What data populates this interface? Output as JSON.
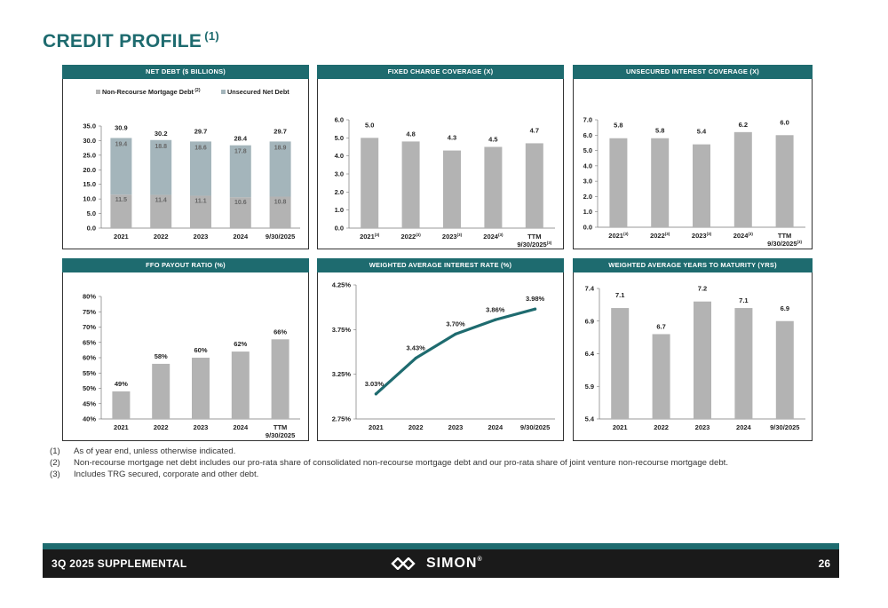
{
  "page": {
    "title": "CREDIT PROFILE",
    "title_footnote": "(1)"
  },
  "colors": {
    "teal": "#1e6b6f",
    "bar_gray": "#b3b3b3",
    "bar_light": "#a4b5bb",
    "dark": "#1a1a1a"
  },
  "chart_data": [
    {
      "id": "net-debt",
      "type": "bar",
      "stacked": true,
      "title": "NET DEBT ($ BILLIONS)",
      "categories": [
        "2021",
        "2022",
        "2023",
        "2024",
        "9/30/2025"
      ],
      "series": [
        {
          "name": "Non-Recourse Mortgage Debt",
          "name_sup": "(2)",
          "values": [
            11.5,
            11.4,
            11.1,
            10.6,
            10.8
          ]
        },
        {
          "name": "Unsecured Net Debt",
          "values": [
            19.4,
            18.8,
            18.6,
            17.8,
            18.9
          ]
        }
      ],
      "totals": [
        30.9,
        30.2,
        29.7,
        28.4,
        29.7
      ],
      "ylim": [
        0,
        35
      ],
      "yticks": [
        "0.0",
        "5.0",
        "10.0",
        "15.0",
        "20.0",
        "25.0",
        "30.0",
        "35.0"
      ],
      "legend": "top"
    },
    {
      "id": "fixed-charge",
      "type": "bar",
      "title": "FIXED CHARGE COVERAGE (X)",
      "categories": [
        "2021",
        "2022",
        "2023",
        "2024",
        "TTM"
      ],
      "category_sub": [
        "",
        "",
        "",
        "",
        "9/30/2025"
      ],
      "category_sup": [
        "(3)",
        "(3)",
        "(3)",
        "(3)",
        "(3)"
      ],
      "values": [
        5.0,
        4.8,
        4.3,
        4.5,
        4.7
      ],
      "value_labels": [
        "5.0",
        "4.8",
        "4.3",
        "4.5",
        "4.7"
      ],
      "ylim": [
        0,
        6
      ],
      "yticks": [
        "0.0",
        "1.0",
        "2.0",
        "3.0",
        "4.0",
        "5.0",
        "6.0"
      ]
    },
    {
      "id": "unsecured-interest",
      "type": "bar",
      "title": "UNSECURED INTEREST COVERAGE (X)",
      "categories": [
        "2021",
        "2022",
        "2023",
        "2024",
        "TTM"
      ],
      "category_sub": [
        "",
        "",
        "",
        "",
        "9/30/2025"
      ],
      "category_sup": [
        "(3)",
        "(3)",
        "(3)",
        "(3)",
        "(3)"
      ],
      "values": [
        5.8,
        5.8,
        5.4,
        6.2,
        6.0
      ],
      "value_labels": [
        "5.8",
        "5.8",
        "5.4",
        "6.2",
        "6.0"
      ],
      "ylim": [
        0,
        7
      ],
      "yticks": [
        "0.0",
        "1.0",
        "2.0",
        "3.0",
        "4.0",
        "5.0",
        "6.0",
        "7.0"
      ]
    },
    {
      "id": "ffo-payout",
      "type": "bar",
      "title": "FFO PAYOUT RATIO (%)",
      "categories": [
        "2021",
        "2022",
        "2023",
        "2024",
        "TTM"
      ],
      "category_sub": [
        "",
        "",
        "",
        "",
        "9/30/2025"
      ],
      "values": [
        49,
        58,
        60,
        62,
        66
      ],
      "value_labels": [
        "49%",
        "58%",
        "60%",
        "62%",
        "66%"
      ],
      "ylim": [
        40,
        80
      ],
      "yticks": [
        "40%",
        "45%",
        "50%",
        "55%",
        "60%",
        "65%",
        "70%",
        "75%",
        "80%"
      ]
    },
    {
      "id": "weighted-rate",
      "type": "line",
      "title": "WEIGHTED AVERAGE INTEREST RATE (%)",
      "categories": [
        "2021",
        "2022",
        "2023",
        "2024",
        "9/30/2025"
      ],
      "values": [
        3.03,
        3.43,
        3.7,
        3.86,
        3.98
      ],
      "value_labels": [
        "3.03%",
        "3.43%",
        "3.70%",
        "3.86%",
        "3.98%"
      ],
      "ylim": [
        2.75,
        4.25
      ],
      "yticks": [
        "2.75%",
        "3.25%",
        "3.75%",
        "4.25%"
      ]
    },
    {
      "id": "years-maturity",
      "type": "bar",
      "title": "WEIGHTED AVERAGE YEARS TO MATURITY (YRS)",
      "categories": [
        "2021",
        "2022",
        "2023",
        "2024",
        "9/30/2025"
      ],
      "values": [
        7.1,
        6.7,
        7.2,
        7.1,
        6.9
      ],
      "value_labels": [
        "7.1",
        "6.7",
        "7.2",
        "7.1",
        "6.9"
      ],
      "ylim": [
        5.4,
        7.4
      ],
      "yticks": [
        "5.4",
        "5.9",
        "6.4",
        "6.9",
        "7.4"
      ]
    }
  ],
  "footnotes": [
    {
      "num": "(1)",
      "text": "As of year end, unless otherwise indicated."
    },
    {
      "num": "(2)",
      "text": "Non-recourse mortgage net debt includes our pro-rata share of consolidated non-recourse mortgage debt and our pro-rata share of joint venture non-recourse mortgage debt."
    },
    {
      "num": "(3)",
      "text": "Includes TRG secured, corporate and other debt."
    }
  ],
  "footer": {
    "label": "3Q 2025 SUPPLEMENTAL",
    "logo_text": "SIMON",
    "logo_mark": "®",
    "page_number": "26"
  }
}
